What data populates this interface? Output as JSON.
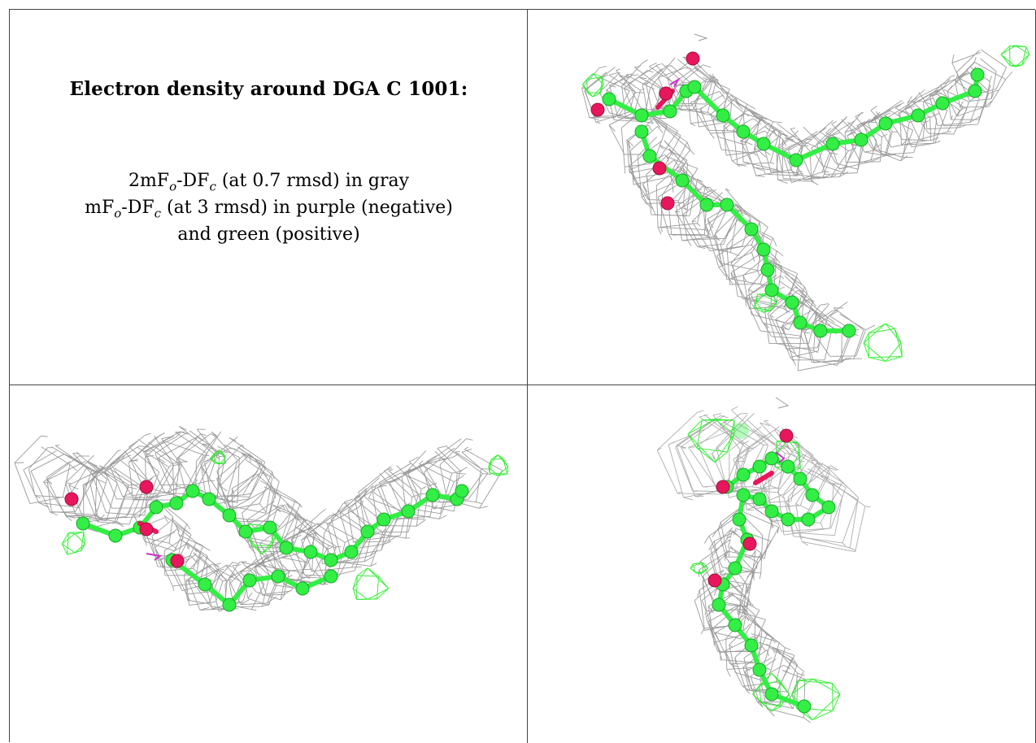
{
  "title": "Electron density around DGA C 1001:",
  "legend": {
    "line1": {
      "a": "2mF",
      "a_sub": "o",
      "b": "-DF",
      "b_sub": "c",
      "rest": " (at 0.7 rmsd) in gray"
    },
    "line2": {
      "a": "mF",
      "a_sub": "o",
      "b": "-DF",
      "b_sub": "c",
      "rest": " (at 3 rmsd) in purple (negative)"
    },
    "line3": "and green (positive)"
  },
  "colors": {
    "mesh_2fofc": "#8a8a8a",
    "positive_density": "#22ee22",
    "negative_density": "#cc33cc",
    "carbon": "#33ee44",
    "oxygen": "#e8175d",
    "border": "#444444"
  },
  "views": [
    {
      "name": "view-1",
      "description_icon": "molecule-density-view"
    },
    {
      "name": "view-2",
      "description_icon": "molecule-density-view"
    },
    {
      "name": "view-3",
      "description_icon": "molecule-density-view"
    }
  ]
}
